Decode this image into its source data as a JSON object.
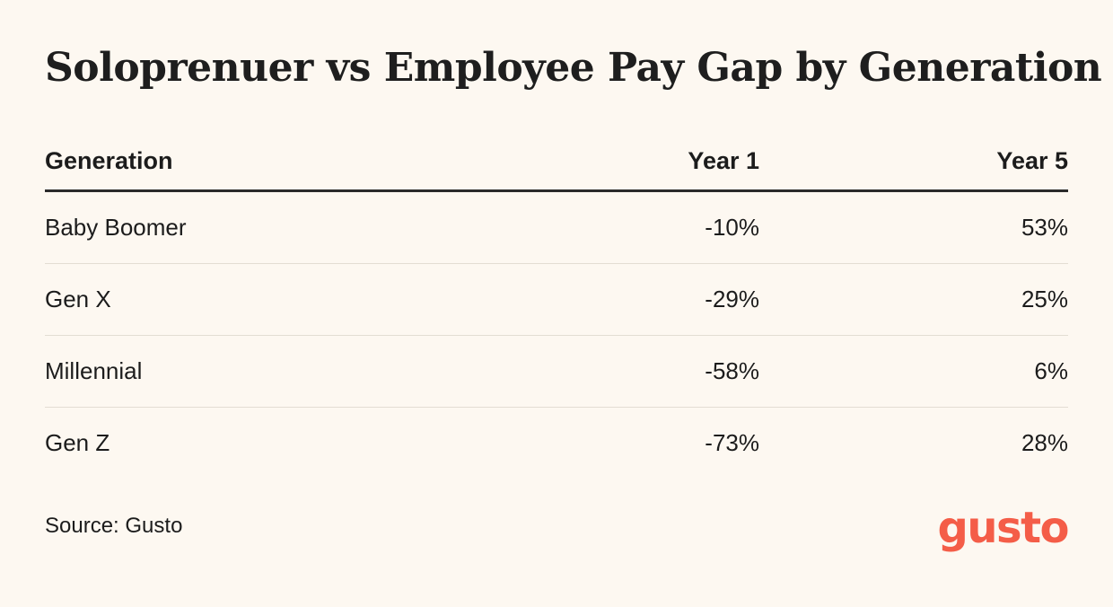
{
  "chart_data": {
    "type": "table",
    "title": "Soloprenuer vs Employee Pay Gap by Generation",
    "columns": [
      "Generation",
      "Year 1",
      "Year 5"
    ],
    "rows": [
      {
        "generation": "Baby Boomer",
        "year1": "-10%",
        "year5": "53%"
      },
      {
        "generation": "Gen X",
        "year1": "-29%",
        "year5": "25%"
      },
      {
        "generation": "Millennial",
        "year1": "-58%",
        "year5": "6%"
      },
      {
        "generation": "Gen Z",
        "year1": "-73%",
        "year5": "28%"
      }
    ],
    "values": {
      "year1": [
        -10,
        -29,
        -58,
        -73
      ],
      "year5": [
        53,
        25,
        6,
        28
      ]
    },
    "source": "Source: Gusto"
  },
  "brand": {
    "logo_text": "gusto",
    "logo_color": "#f45d48"
  },
  "colors": {
    "background": "#fdf8f1",
    "text": "#1c1c1c",
    "header_rule": "#2b2b2b",
    "row_rule": "#e3ddd3"
  }
}
